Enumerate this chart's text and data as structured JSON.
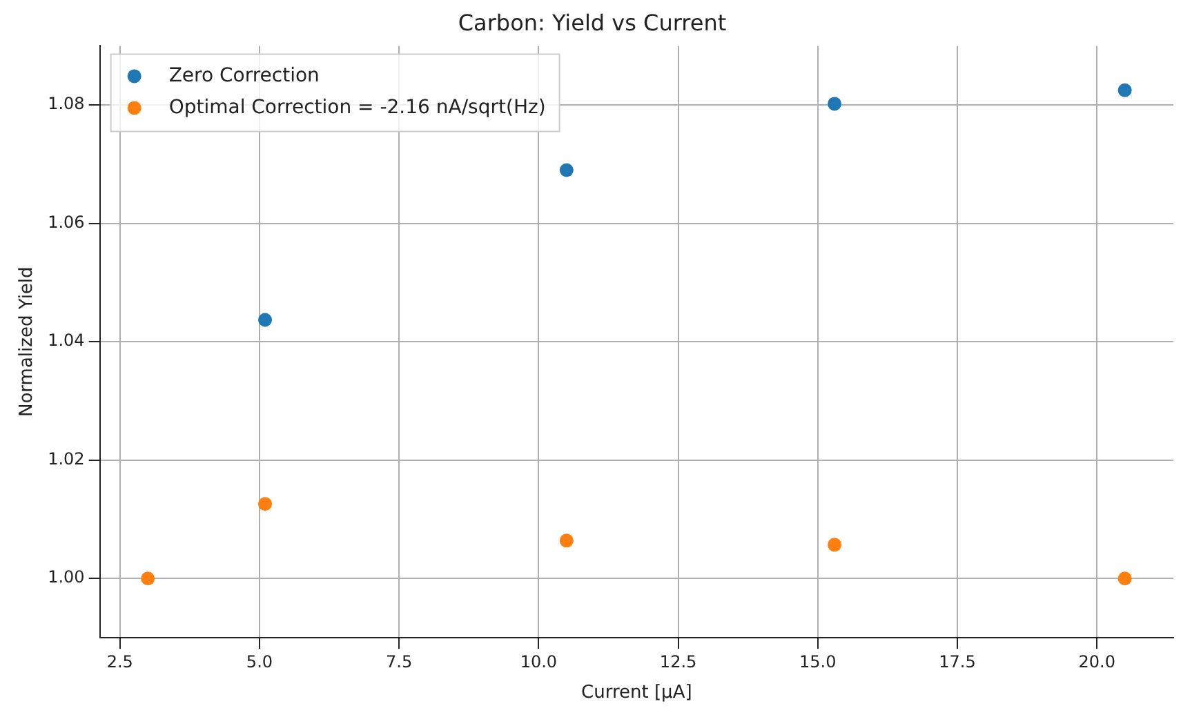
{
  "chart_data": {
    "type": "scatter",
    "title": "Carbon: Yield vs Current",
    "xlabel": "Current [μA]",
    "ylabel": "Normalized Yield",
    "series": [
      {
        "name": "Zero Correction",
        "color": "#1f77b4",
        "x": [
          5.1,
          10.5,
          15.3,
          20.5
        ],
        "values": [
          1.0437,
          1.069,
          1.0802,
          1.0825
        ]
      },
      {
        "name": "Optimal Correction = -2.16 nA/sqrt(Hz)",
        "color": "#ff7f0e",
        "x": [
          3.0,
          5.1,
          10.5,
          15.3,
          20.5
        ],
        "values": [
          1.0,
          1.0126,
          1.0064,
          1.0057,
          1.0
        ]
      }
    ],
    "xlim": [
      2.14,
      21.37
    ],
    "xticks": [
      {
        "value": 2.5,
        "label": "2.5"
      },
      {
        "value": 5,
        "label": "5.0"
      },
      {
        "value": 7.5,
        "label": "7.5"
      },
      {
        "value": 10,
        "label": "10.0"
      },
      {
        "value": 12.5,
        "label": "12.5"
      },
      {
        "value": 15,
        "label": "15.0"
      },
      {
        "value": 17.5,
        "label": "17.5"
      },
      {
        "value": 20,
        "label": "20.0"
      }
    ],
    "ylim": [
      0.99,
      1.09
    ],
    "yticks": [
      {
        "value": 1,
        "label": "1.00"
      },
      {
        "value": 1.02,
        "label": "1.02"
      },
      {
        "value": 1.04,
        "label": "1.04"
      },
      {
        "value": 1.06,
        "label": "1.06"
      },
      {
        "value": 1.08,
        "label": "1.08"
      }
    ],
    "grid": true,
    "legend": "top left",
    "marker": "circle"
  }
}
